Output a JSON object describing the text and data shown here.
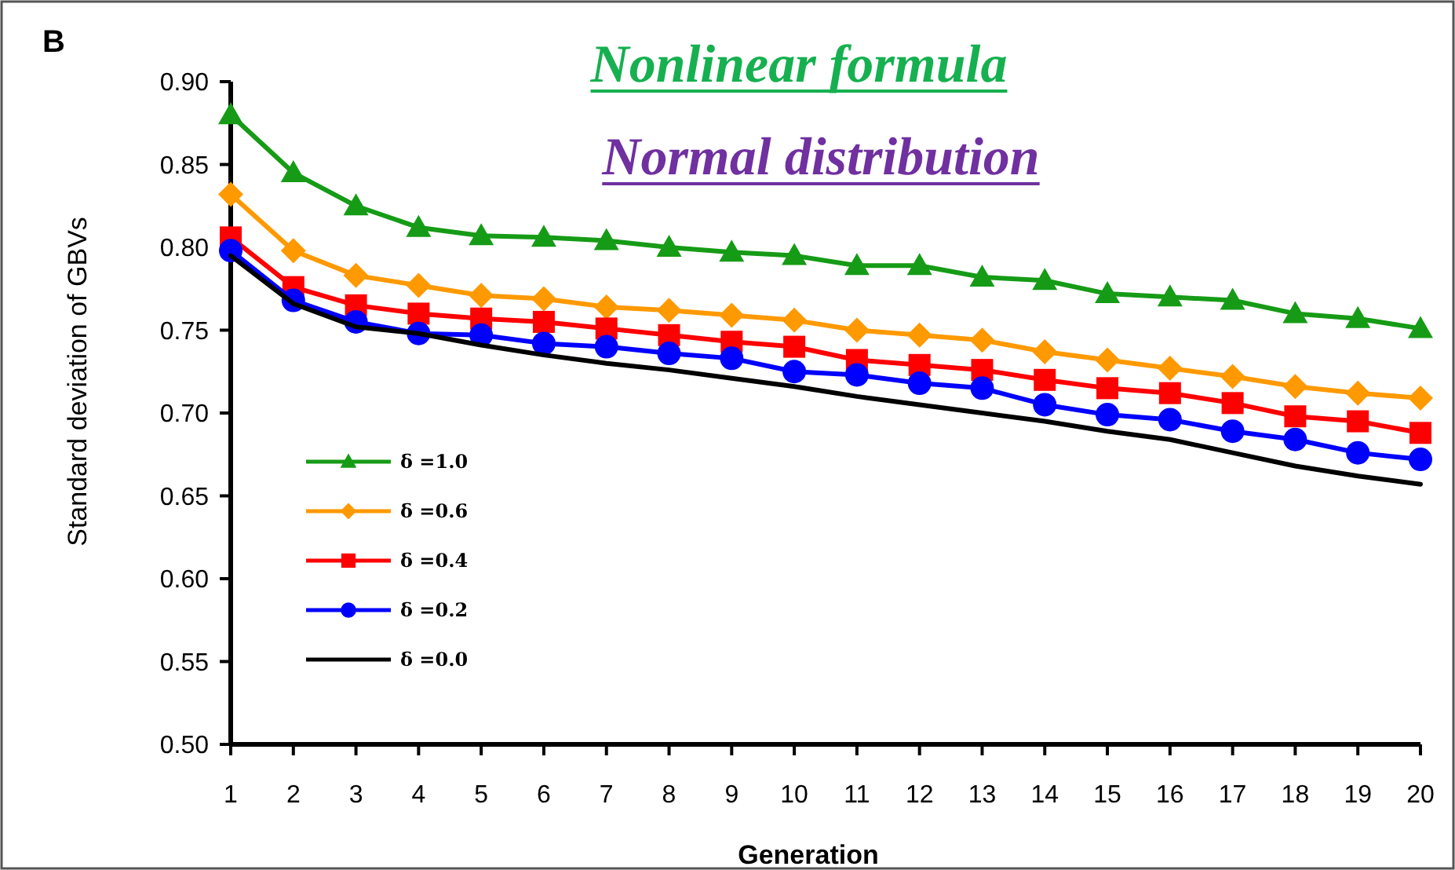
{
  "chart_data": {
    "type": "line",
    "title": "Nonlinear formula",
    "subtitle": "Normal distribution",
    "annotations": [
      "B"
    ],
    "xlabel": "Generation",
    "ylabel": "Standard deviation of GBVs",
    "x": [
      1,
      2,
      3,
      4,
      5,
      6,
      7,
      8,
      9,
      10,
      11,
      12,
      13,
      14,
      15,
      16,
      17,
      18,
      19,
      20
    ],
    "xlim": [
      1,
      20
    ],
    "xticks": [
      1,
      2,
      3,
      4,
      5,
      6,
      7,
      8,
      9,
      10,
      11,
      12,
      13,
      14,
      15,
      16,
      17,
      18,
      19,
      20
    ],
    "ylim": [
      0.5,
      0.9
    ],
    "yticks": [
      {
        "value": 0.5,
        "label": "0.50"
      },
      {
        "value": 0.55,
        "label": "0.55"
      },
      {
        "value": 0.6,
        "label": "0.60"
      },
      {
        "value": 0.65,
        "label": "0.65"
      },
      {
        "value": 0.7,
        "label": "0.70"
      },
      {
        "value": 0.75,
        "label": "0.75"
      },
      {
        "value": 0.8,
        "label": "0.80"
      },
      {
        "value": 0.85,
        "label": "0.85"
      },
      {
        "value": 0.9,
        "label": "0.90"
      }
    ],
    "grid": false,
    "legend": "bottom left",
    "line_style": "solid",
    "series": [
      {
        "name": "δ =1.0",
        "color": "#169b16",
        "marker": "triangle",
        "values": [
          0.88,
          0.845,
          0.825,
          0.812,
          0.807,
          0.806,
          0.804,
          0.8,
          0.797,
          0.795,
          0.789,
          0.789,
          0.782,
          0.78,
          0.772,
          0.77,
          0.768,
          0.76,
          0.757,
          0.751
        ]
      },
      {
        "name": "δ =0.6",
        "color": "#ff9900",
        "marker": "diamond",
        "values": [
          0.832,
          0.798,
          0.783,
          0.777,
          0.771,
          0.769,
          0.764,
          0.762,
          0.759,
          0.756,
          0.75,
          0.747,
          0.744,
          0.737,
          0.732,
          0.727,
          0.722,
          0.716,
          0.712,
          0.709
        ]
      },
      {
        "name": "δ =0.4",
        "color": "#ff0000",
        "marker": "square",
        "values": [
          0.806,
          0.776,
          0.765,
          0.76,
          0.757,
          0.755,
          0.751,
          0.747,
          0.743,
          0.74,
          0.732,
          0.729,
          0.726,
          0.72,
          0.715,
          0.712,
          0.706,
          0.698,
          0.695,
          0.688
        ]
      },
      {
        "name": "δ =0.2",
        "color": "#0000ff",
        "marker": "circle",
        "values": [
          0.798,
          0.768,
          0.755,
          0.748,
          0.747,
          0.742,
          0.74,
          0.736,
          0.733,
          0.725,
          0.723,
          0.718,
          0.715,
          0.705,
          0.699,
          0.696,
          0.689,
          0.684,
          0.676,
          0.672
        ]
      },
      {
        "name": "δ =0.0",
        "color": "#000000",
        "marker": "none",
        "values": [
          0.795,
          0.766,
          0.752,
          0.748,
          0.741,
          0.735,
          0.73,
          0.726,
          0.721,
          0.716,
          0.71,
          0.705,
          0.7,
          0.695,
          0.689,
          0.684,
          0.676,
          0.668,
          0.662,
          0.657
        ]
      }
    ]
  }
}
